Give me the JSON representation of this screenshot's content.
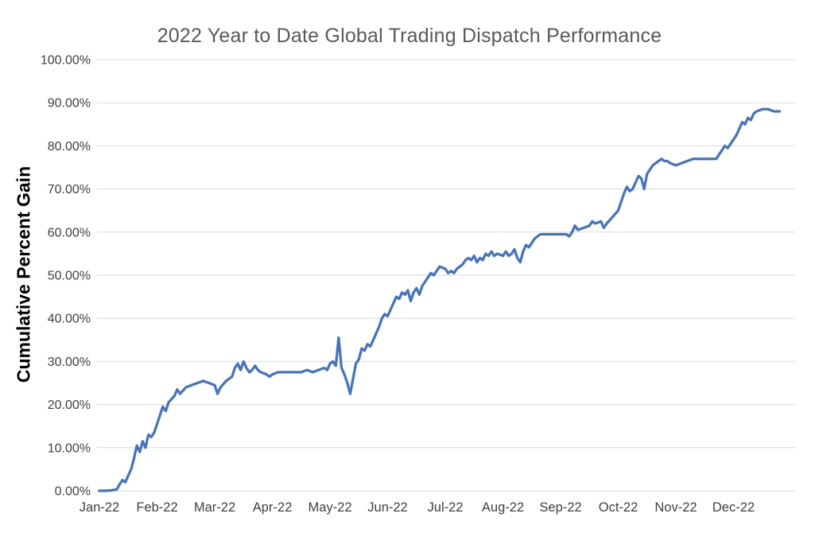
{
  "title": "2022 Year to Date Global Trading Dispatch Performance",
  "chart_data": {
    "type": "line",
    "title": "2022 Year to Date Global Trading Dispatch Performance",
    "xlabel": "",
    "ylabel": "Cumulative Percent Gain",
    "legend": "none",
    "grid": "horizontal",
    "ylim": [
      0,
      100
    ],
    "y_tick_values": [
      0,
      10,
      20,
      30,
      40,
      50,
      60,
      70,
      80,
      90,
      100
    ],
    "y_tick_labels": [
      "0.00%",
      "10.00%",
      "20.00%",
      "30.00%",
      "40.00%",
      "50.00%",
      "60.00%",
      "70.00%",
      "80.00%",
      "90.00%",
      "100.00%"
    ],
    "x_tick_labels": [
      "Jan-22",
      "Feb-22",
      "Mar-22",
      "Apr-22",
      "May-22",
      "Jun-22",
      "Jul-22",
      "Aug-22",
      "Sep-22",
      "Oct-22",
      "Nov-22",
      "Dec-22"
    ],
    "line_color": "#4472C4",
    "gridline_color": "#D9D9D9",
    "tick_label_color": "#404040",
    "title_color": "#595959",
    "series": [
      {
        "name": "Cumulative Percent Gain",
        "x_unit": "months since Jan-22 start",
        "x": [
          0.0,
          0.1,
          0.2,
          0.3,
          0.35,
          0.4,
          0.45,
          0.5,
          0.55,
          0.6,
          0.65,
          0.7,
          0.75,
          0.8,
          0.85,
          0.9,
          0.95,
          1.0,
          1.05,
          1.1,
          1.15,
          1.2,
          1.3,
          1.35,
          1.4,
          1.5,
          1.6,
          1.7,
          1.8,
          1.9,
          2.0,
          2.05,
          2.1,
          2.2,
          2.3,
          2.35,
          2.4,
          2.45,
          2.5,
          2.55,
          2.6,
          2.65,
          2.7,
          2.75,
          2.8,
          2.9,
          2.95,
          3.0,
          3.1,
          3.2,
          3.3,
          3.4,
          3.5,
          3.6,
          3.7,
          3.8,
          3.9,
          3.95,
          4.0,
          4.05,
          4.1,
          4.15,
          4.2,
          4.25,
          4.3,
          4.35,
          4.4,
          4.45,
          4.5,
          4.55,
          4.6,
          4.65,
          4.7,
          4.75,
          4.8,
          4.85,
          4.9,
          4.95,
          5.0,
          5.05,
          5.1,
          5.15,
          5.2,
          5.25,
          5.3,
          5.35,
          5.4,
          5.45,
          5.5,
          5.55,
          5.6,
          5.65,
          5.7,
          5.75,
          5.8,
          5.85,
          5.9,
          6.0,
          6.05,
          6.1,
          6.15,
          6.2,
          6.3,
          6.35,
          6.4,
          6.45,
          6.5,
          6.55,
          6.6,
          6.65,
          6.7,
          6.75,
          6.8,
          6.85,
          6.9,
          7.0,
          7.05,
          7.1,
          7.15,
          7.2,
          7.25,
          7.3,
          7.35,
          7.4,
          7.45,
          7.5,
          7.55,
          7.6,
          7.65,
          7.7,
          7.8,
          7.9,
          8.0,
          8.1,
          8.15,
          8.2,
          8.25,
          8.3,
          8.4,
          8.5,
          8.55,
          8.6,
          8.7,
          8.75,
          8.8,
          8.9,
          9.0,
          9.05,
          9.1,
          9.15,
          9.2,
          9.25,
          9.3,
          9.35,
          9.4,
          9.45,
          9.5,
          9.55,
          9.6,
          9.65,
          9.7,
          9.75,
          9.8,
          9.85,
          9.9,
          10.0,
          10.1,
          10.2,
          10.3,
          10.4,
          10.5,
          10.6,
          10.7,
          10.75,
          10.8,
          10.85,
          10.9,
          10.95,
          11.0,
          11.05,
          11.1,
          11.15,
          11.2,
          11.25,
          11.3,
          11.35,
          11.4,
          11.5,
          11.6,
          11.7,
          11.8
        ],
        "y": [
          0.0,
          0.0,
          0.1,
          0.3,
          1.5,
          2.5,
          2.0,
          3.5,
          5.0,
          7.5,
          10.5,
          9.0,
          11.5,
          10.0,
          13.0,
          12.5,
          13.5,
          15.5,
          17.5,
          19.5,
          18.5,
          20.5,
          22.0,
          23.5,
          22.5,
          24.0,
          24.5,
          25.0,
          25.5,
          25.0,
          24.5,
          22.5,
          24.0,
          25.5,
          26.5,
          28.5,
          29.5,
          28.0,
          30.0,
          28.5,
          27.5,
          28.0,
          29.0,
          28.0,
          27.5,
          27.0,
          26.5,
          27.0,
          27.5,
          27.5,
          27.5,
          27.5,
          27.5,
          28.0,
          27.5,
          28.0,
          28.5,
          28.0,
          29.5,
          30.0,
          29.0,
          35.5,
          28.5,
          27.0,
          25.0,
          22.5,
          26.0,
          29.5,
          30.5,
          33.0,
          32.5,
          34.0,
          33.5,
          35.0,
          36.5,
          38.0,
          40.0,
          41.0,
          40.5,
          42.0,
          43.5,
          45.0,
          44.5,
          46.0,
          45.5,
          46.5,
          44.0,
          46.0,
          47.0,
          45.5,
          47.5,
          48.5,
          49.5,
          50.5,
          50.0,
          51.0,
          52.0,
          51.5,
          50.5,
          51.0,
          50.5,
          51.5,
          52.5,
          53.5,
          54.0,
          53.5,
          54.5,
          53.0,
          54.0,
          53.5,
          55.0,
          54.5,
          55.5,
          54.5,
          55.0,
          54.5,
          55.5,
          54.5,
          55.0,
          56.0,
          54.0,
          53.0,
          55.5,
          57.0,
          56.5,
          57.5,
          58.5,
          59.0,
          59.5,
          59.5,
          59.5,
          59.5,
          59.5,
          59.5,
          59.0,
          60.0,
          61.5,
          60.5,
          61.0,
          61.5,
          62.5,
          62.0,
          62.5,
          61.0,
          62.0,
          63.5,
          65.0,
          67.0,
          69.0,
          70.5,
          69.5,
          70.0,
          71.5,
          73.0,
          72.5,
          70.0,
          73.5,
          74.5,
          75.5,
          76.0,
          76.5,
          77.0,
          76.5,
          76.5,
          76.0,
          75.5,
          76.0,
          76.5,
          77.0,
          77.0,
          77.0,
          77.0,
          77.0,
          78.0,
          79.0,
          80.0,
          79.5,
          80.5,
          81.5,
          82.5,
          84.0,
          85.5,
          85.0,
          86.5,
          86.0,
          87.5,
          88.0,
          88.5,
          88.5,
          88.0,
          88.0
        ]
      }
    ]
  }
}
